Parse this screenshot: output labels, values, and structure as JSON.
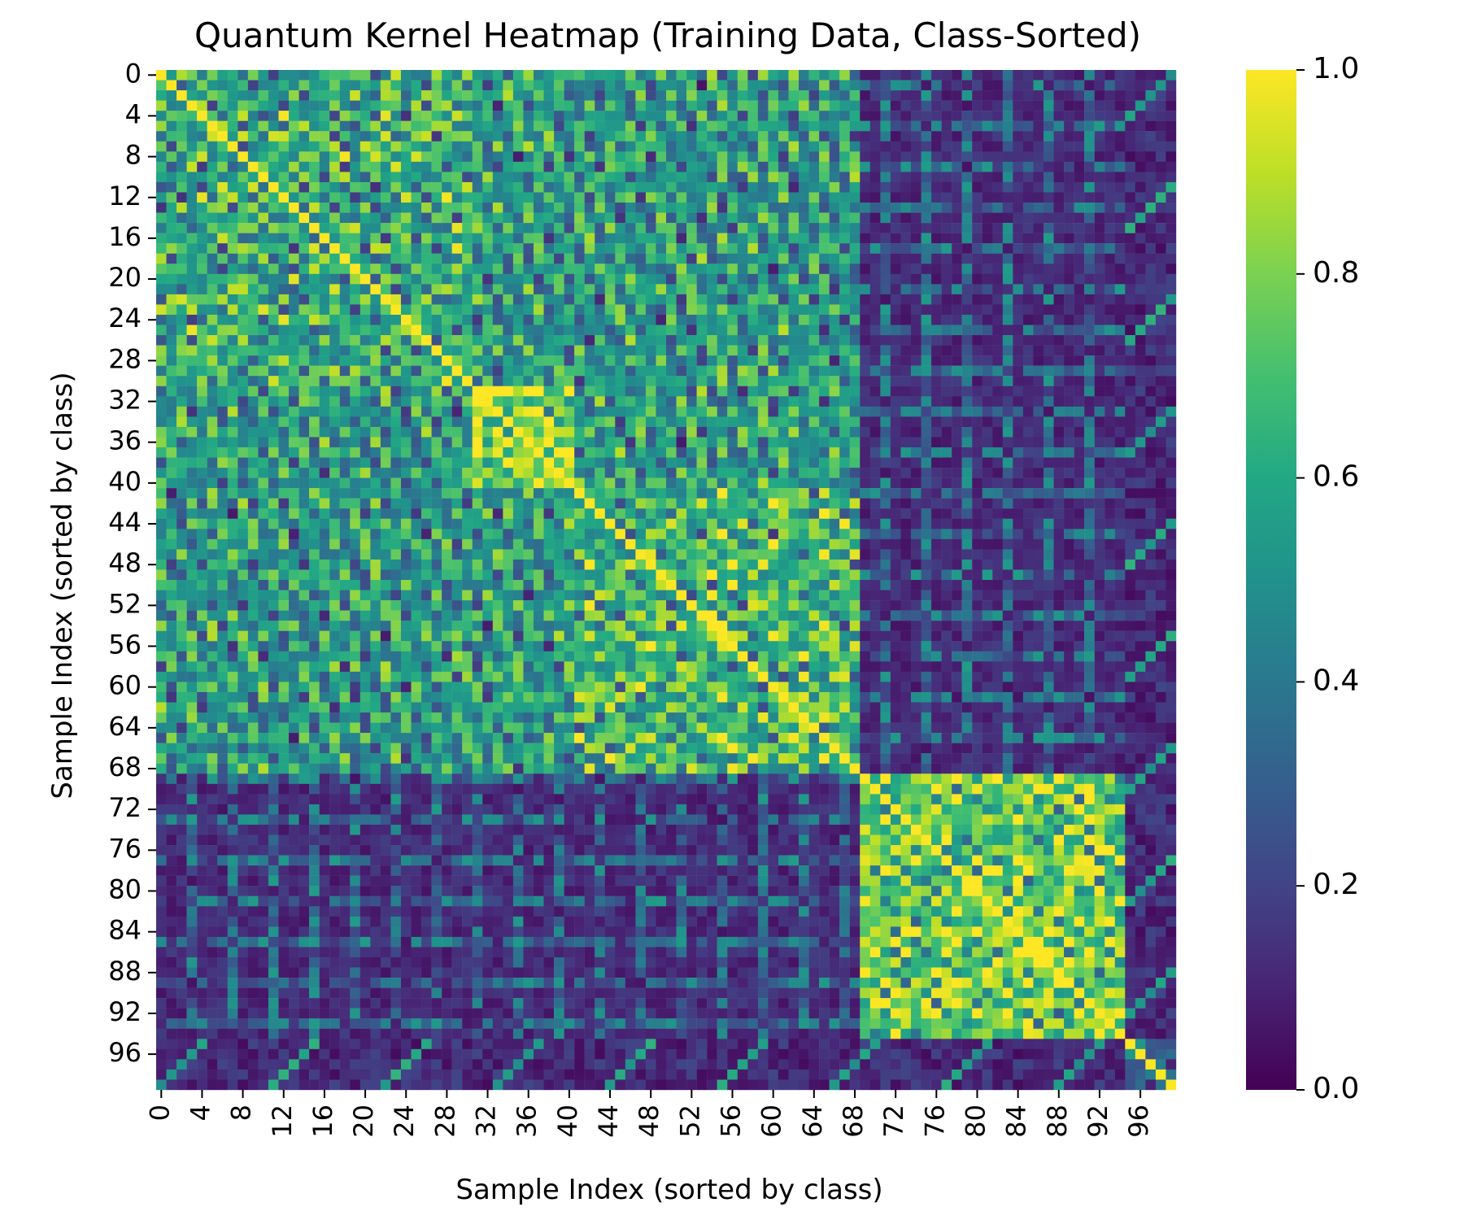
{
  "chart_data": {
    "type": "heatmap",
    "title": "Quantum Kernel Heatmap (Training Data, Class-Sorted)",
    "xlabel": "Sample Index (sorted by class)",
    "ylabel": "Sample Index (sorted by class)",
    "n_samples": 100,
    "class_blocks": [
      {
        "start": 0,
        "end": 31,
        "within_similarity": 0.55
      },
      {
        "start": 31,
        "end": 41,
        "within_similarity": 0.78
      },
      {
        "start": 41,
        "end": 69,
        "within_similarity": 0.6
      },
      {
        "start": 69,
        "end": 95,
        "within_similarity": 0.72
      },
      {
        "start": 95,
        "end": 100,
        "within_similarity": 0.35
      }
    ],
    "x_ticks": [
      "0",
      "4",
      "8",
      "12",
      "16",
      "20",
      "24",
      "28",
      "32",
      "36",
      "40",
      "44",
      "48",
      "52",
      "56",
      "60",
      "64",
      "68",
      "72",
      "76",
      "80",
      "84",
      "88",
      "92",
      "96"
    ],
    "y_ticks": [
      "0",
      "4",
      "8",
      "12",
      "16",
      "20",
      "24",
      "28",
      "32",
      "36",
      "40",
      "44",
      "48",
      "52",
      "56",
      "60",
      "64",
      "68",
      "72",
      "76",
      "80",
      "84",
      "88",
      "92",
      "96"
    ],
    "colorbar": {
      "colormap": "viridis",
      "vmin": 0.0,
      "vmax": 1.0,
      "ticks": [
        "0.0",
        "0.2",
        "0.4",
        "0.6",
        "0.8",
        "1.0"
      ]
    }
  }
}
